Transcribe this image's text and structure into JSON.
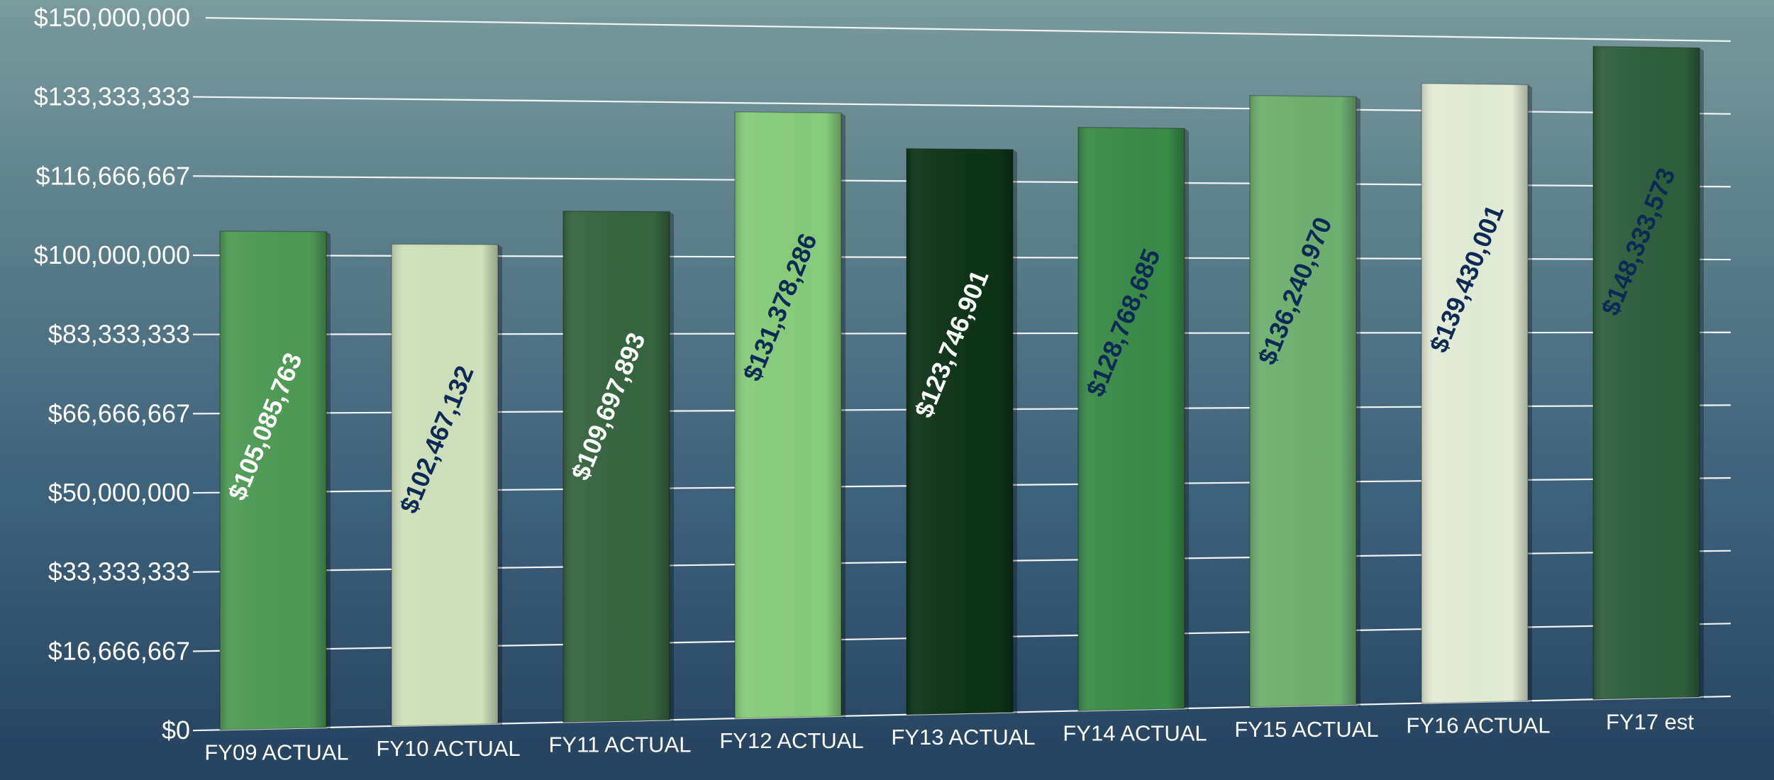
{
  "chart_data": {
    "type": "bar",
    "title": "",
    "xlabel": "",
    "ylabel": "",
    "ylim": [
      0,
      150000000
    ],
    "grid": true,
    "yticks": [
      "$0",
      "$16,666,667",
      "$33,333,333",
      "$50,000,000",
      "$66,666,667",
      "$83,333,333",
      "$100,000,000",
      "$116,666,667",
      "$133,333,333",
      "$150,000,000"
    ],
    "categories": [
      "FY09 ACTUAL",
      "FY10 ACTUAL",
      "FY11 ACTUAL",
      "FY12 ACTUAL",
      "FY13 ACTUAL",
      "FY14 ACTUAL",
      "FY15 ACTUAL",
      "FY16 ACTUAL",
      "FY17 est"
    ],
    "values": [
      105085763,
      102467132,
      109697893,
      131378286,
      123746901,
      128768685,
      136240970,
      139430001,
      148333573
    ],
    "value_labels": [
      "$105,085,763",
      "$102,467,132",
      "$109,697,893",
      "$131,378,286",
      "$123,746,901",
      "$128,768,685",
      "$136,240,970",
      "$139,430,001",
      "$148,333,573"
    ],
    "bar_colors": [
      "#4f9a55",
      "#cfe0bb",
      "#36643f",
      "#86cc7a",
      "#0e3318",
      "#3a8a48",
      "#6eb070",
      "#e3ecd6",
      "#2f5e3d"
    ],
    "label_colors": [
      "#ffffff",
      "#0d2a55",
      "#ffffff",
      "#0d2a55",
      "#ffffff",
      "#0d2a55",
      "#0d2a55",
      "#0d2a55",
      "#0d2a55"
    ]
  }
}
